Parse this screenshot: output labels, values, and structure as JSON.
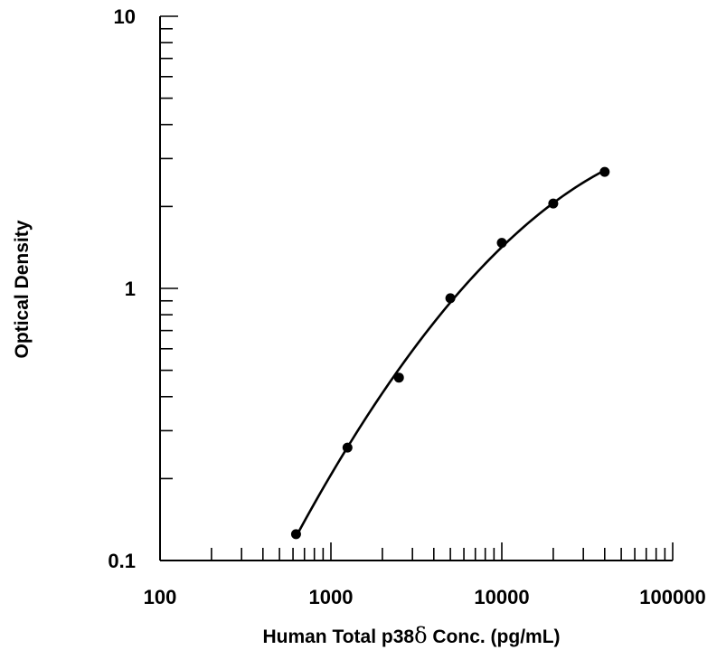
{
  "chart_data": {
    "type": "scatter",
    "xlabel_pre": "Human Total p38",
    "xlabel_symbol": "δ",
    "xlabel_post": " Conc. (pg/mL)",
    "ylabel": "Optical Density",
    "x_scale": "log",
    "y_scale": "log",
    "xlim": [
      100,
      100000
    ],
    "ylim": [
      0.1,
      10
    ],
    "x_ticks": [
      {
        "value": 100,
        "label": "100"
      },
      {
        "value": 1000,
        "label": "1000"
      },
      {
        "value": 10000,
        "label": "10000"
      },
      {
        "value": 100000,
        "label": "100000"
      }
    ],
    "y_ticks": [
      {
        "value": 0.1,
        "label": "0.1"
      },
      {
        "value": 1,
        "label": "1"
      },
      {
        "value": 10,
        "label": "10"
      }
    ],
    "grid": false,
    "series": [
      {
        "x": [
          625,
          1250,
          2500,
          5000,
          10000,
          20000,
          40000
        ],
        "y": [
          0.125,
          0.26,
          0.47,
          0.92,
          1.47,
          2.05,
          2.68
        ],
        "fit": "smooth-curve",
        "fit_x_range": [
          640,
          40000
        ]
      }
    ]
  }
}
